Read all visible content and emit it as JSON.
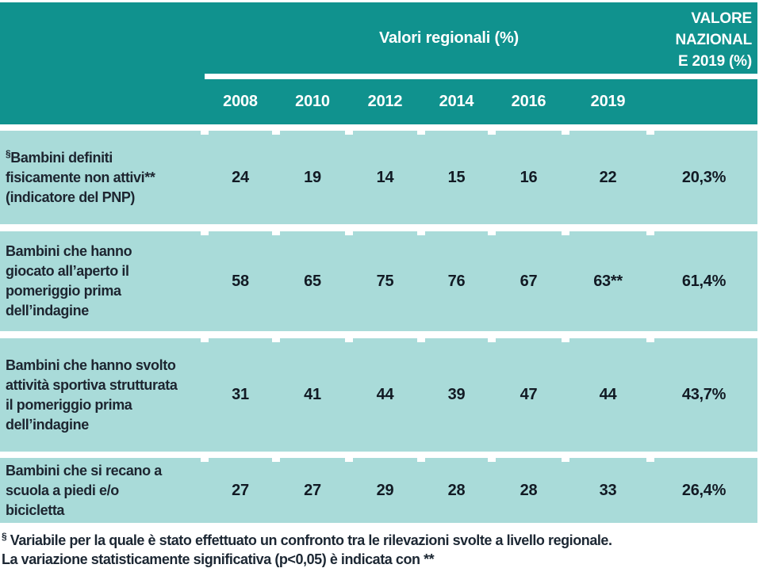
{
  "table": {
    "header": {
      "regional_title": "Valori regionali (%)",
      "national_title": "VALORE\nNAZIONAL\nE 2019 (%)",
      "years": [
        "2008",
        "2010",
        "2012",
        "2014",
        "2016",
        "2019"
      ]
    },
    "rows": [
      {
        "prefix": "§",
        "label": "Bambini definiti fisicamente non attivi** (indicatore del PNP)",
        "values": [
          "24",
          "19",
          "14",
          "15",
          "16",
          "22"
        ],
        "national": "20,3%"
      },
      {
        "prefix": "",
        "label": "Bambini che hanno giocato all’aperto il pomeriggio prima dell’indagine",
        "values": [
          "58",
          "65",
          "75",
          "76",
          "67",
          "63**"
        ],
        "national": "61,4%"
      },
      {
        "prefix": "",
        "label": "Bambini che hanno svolto attività sportiva strutturata il pomeriggio prima dell’indagine",
        "values": [
          "31",
          "41",
          "44",
          "39",
          "47",
          "44"
        ],
        "national": "43,7%"
      },
      {
        "prefix": "",
        "label": "Bambini che si recano a scuola a piedi e/o bicicletta",
        "values": [
          "27",
          "27",
          "29",
          "28",
          "28",
          "33"
        ],
        "national": "26,4%"
      }
    ],
    "footnotes": [
      {
        "prefix": "§",
        "text": " Variabile per la quale è stato effettuato un confronto tra le rilevazioni svolte a livello regionale."
      },
      {
        "prefix": "",
        "text": "La variazione statisticamente significativa (p<0,05) è indicata con **"
      }
    ]
  },
  "colors": {
    "header_teal": "#10928e",
    "row_teal": "#a9dbd9",
    "header_text": "#ffffff",
    "body_text": "#1d2530",
    "footnote_text": "#1c2733"
  }
}
